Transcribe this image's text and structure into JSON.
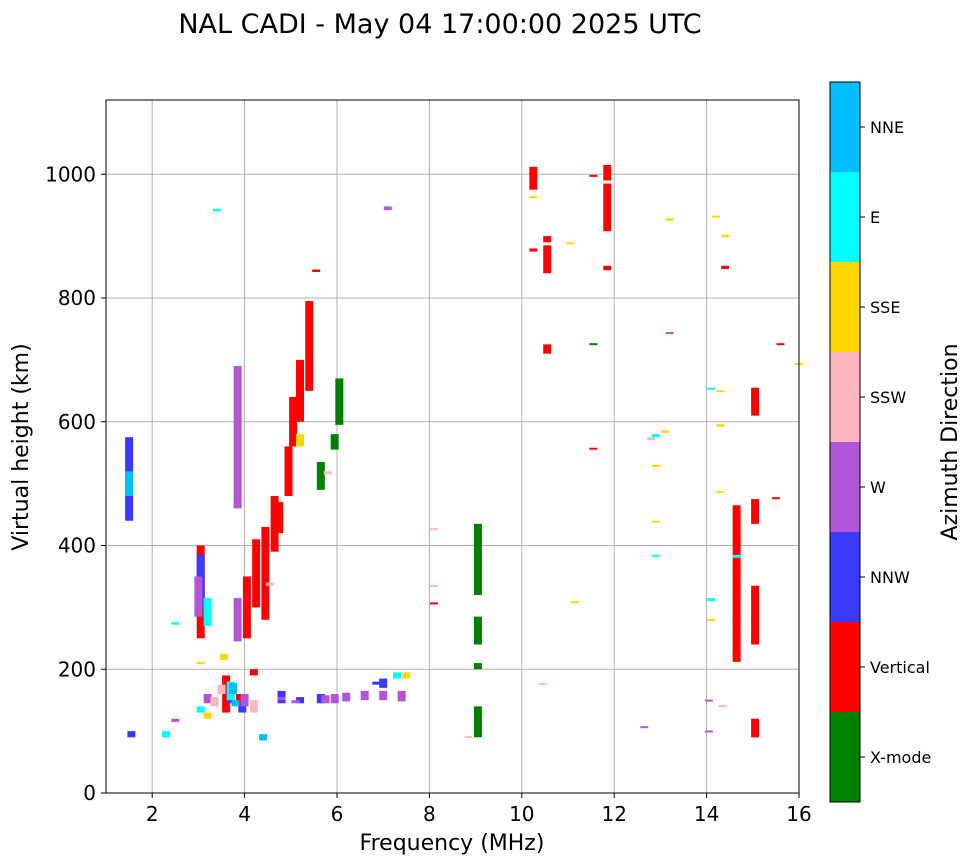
{
  "chart_data": {
    "type": "scatter",
    "title": "NAL CADI - May 04 17:00:00 2025 UTC",
    "xlabel": "Frequency (MHz)",
    "ylabel": "Virtual height (km)",
    "xlim": [
      1,
      16
    ],
    "ylim": [
      0,
      1120
    ],
    "xticks": [
      2,
      4,
      6,
      8,
      10,
      12,
      14,
      16
    ],
    "yticks": [
      0,
      200,
      400,
      600,
      800,
      1000
    ],
    "grid": true,
    "colorbar": {
      "label": "Azimuth Direction",
      "categories": [
        {
          "name": "X-mode",
          "color": "#008000"
        },
        {
          "name": "Vertical",
          "color": "#ff0000"
        },
        {
          "name": "NNW",
          "color": "#3a3aff"
        },
        {
          "name": "W",
          "color": "#b355d8"
        },
        {
          "name": "SSW",
          "color": "#ffb6c1"
        },
        {
          "name": "SSE",
          "color": "#ffd700"
        },
        {
          "name": "E",
          "color": "#00ffff"
        },
        {
          "name": "NNE",
          "color": "#00bfff"
        }
      ]
    },
    "series": [
      {
        "name": "X-mode",
        "points": [
          [
            9.05,
            90,
            140
          ],
          [
            9.05,
            200,
            210
          ],
          [
            9.05,
            240,
            285
          ],
          [
            9.05,
            320,
            435
          ],
          [
            6.05,
            595,
            670
          ],
          [
            5.95,
            555,
            580
          ],
          [
            5.65,
            490,
            535
          ],
          [
            11.55,
            725,
            727
          ],
          [
            14.65,
            220,
            225
          ],
          [
            14.65,
            250,
            252
          ],
          [
            14.65,
            282,
            284
          ],
          [
            14.65,
            322,
            324
          ],
          [
            14.65,
            362,
            364
          ],
          [
            14.65,
            402,
            404
          ],
          [
            14.65,
            445,
            447
          ],
          [
            10.25,
            1000,
            1003
          ]
        ]
      },
      {
        "name": "Vertical",
        "points": [
          [
            15.05,
            90,
            120
          ],
          [
            15.05,
            435,
            475
          ],
          [
            15.05,
            610,
            655
          ],
          [
            14.65,
            212,
            465
          ],
          [
            15.05,
            240,
            335
          ],
          [
            11.85,
            845,
            852
          ],
          [
            11.85,
            908,
            985
          ],
          [
            11.85,
            990,
            1015
          ],
          [
            10.55,
            840,
            885
          ],
          [
            10.55,
            890,
            900
          ],
          [
            10.55,
            710,
            725
          ],
          [
            10.25,
            875,
            880
          ],
          [
            10.25,
            975,
            1012
          ],
          [
            11.55,
            555,
            558
          ],
          [
            11.55,
            997,
            999
          ],
          [
            14.4,
            847,
            852
          ],
          [
            15.5,
            475,
            478
          ],
          [
            15.6,
            725,
            727
          ],
          [
            8.1,
            305,
            308
          ],
          [
            4.45,
            280,
            430
          ],
          [
            4.75,
            420,
            470
          ],
          [
            4.95,
            480,
            560
          ],
          [
            5.05,
            560,
            640
          ],
          [
            5.2,
            600,
            700
          ],
          [
            5.4,
            650,
            795
          ],
          [
            4.65,
            390,
            480
          ],
          [
            4.25,
            300,
            410
          ],
          [
            4.05,
            250,
            350
          ],
          [
            4.2,
            190,
            200
          ],
          [
            3.9,
            140,
            160
          ],
          [
            3.6,
            130,
            190
          ],
          [
            3.05,
            250,
            400
          ],
          [
            5.55,
            842,
            846
          ]
        ]
      },
      {
        "name": "NNW",
        "points": [
          [
            1.5,
            440,
            575
          ],
          [
            1.55,
            90,
            100
          ],
          [
            3.05,
            300,
            385
          ],
          [
            4.8,
            145,
            165
          ],
          [
            5.2,
            145,
            155
          ],
          [
            5.65,
            145,
            160
          ],
          [
            3.95,
            130,
            145
          ],
          [
            6.85,
            175,
            180
          ],
          [
            7.0,
            170,
            185
          ],
          [
            3.7,
            145,
            170
          ]
        ]
      },
      {
        "name": "W",
        "points": [
          [
            5.75,
            145,
            158
          ],
          [
            6.2,
            148,
            162
          ],
          [
            6.6,
            150,
            165
          ],
          [
            7.0,
            150,
            165
          ],
          [
            7.4,
            148,
            165
          ],
          [
            4.8,
            150,
            155
          ],
          [
            5.95,
            145,
            160
          ],
          [
            5.1,
            145,
            150
          ],
          [
            3.85,
            460,
            690
          ],
          [
            3.0,
            285,
            350
          ],
          [
            3.85,
            245,
            315
          ],
          [
            4.0,
            140,
            160
          ],
          [
            7.1,
            942,
            948
          ],
          [
            13.2,
            742,
            745
          ],
          [
            12.65,
            105,
            108
          ],
          [
            14.05,
            148,
            151
          ],
          [
            14.05,
            98,
            101
          ],
          [
            3.2,
            145,
            160
          ],
          [
            2.5,
            115,
            120
          ]
        ]
      },
      {
        "name": "SSW",
        "points": [
          [
            8.1,
            425,
            428
          ],
          [
            8.1,
            333,
            336
          ],
          [
            8.85,
            90,
            92
          ],
          [
            10.45,
            175,
            178
          ],
          [
            4.55,
            335,
            340
          ],
          [
            14.35,
            140,
            142
          ],
          [
            12.8,
            570,
            575
          ],
          [
            5.8,
            515,
            520
          ],
          [
            3.5,
            160,
            175
          ],
          [
            4.2,
            130,
            150
          ],
          [
            3.35,
            140,
            155
          ]
        ]
      },
      {
        "name": "SSE",
        "points": [
          [
            12.9,
            437,
            440
          ],
          [
            12.9,
            527,
            530
          ],
          [
            13.1,
            582,
            586
          ],
          [
            13.2,
            925,
            929
          ],
          [
            14.3,
            485,
            488
          ],
          [
            14.3,
            592,
            596
          ],
          [
            14.3,
            648,
            651
          ],
          [
            14.4,
            898,
            902
          ],
          [
            14.2,
            930,
            933
          ],
          [
            14.1,
            278,
            281
          ],
          [
            11.05,
            888,
            890
          ],
          [
            11.15,
            308,
            310
          ],
          [
            10.25,
            962,
            965
          ],
          [
            16.0,
            692,
            695
          ],
          [
            5.2,
            560,
            580
          ],
          [
            7.5,
            185,
            195
          ],
          [
            3.55,
            215,
            225
          ],
          [
            3.2,
            120,
            130
          ],
          [
            3.05,
            208,
            212
          ]
        ]
      },
      {
        "name": "E",
        "points": [
          [
            12.9,
            575,
            580
          ],
          [
            12.9,
            382,
            385
          ],
          [
            14.1,
            652,
            655
          ],
          [
            14.1,
            310,
            315
          ],
          [
            3.4,
            940,
            944
          ],
          [
            3.05,
            130,
            140
          ],
          [
            3.7,
            150,
            180
          ],
          [
            3.2,
            270,
            315
          ],
          [
            2.5,
            272,
            276
          ],
          [
            2.3,
            90,
            100
          ],
          [
            4.4,
            90,
            95
          ],
          [
            7.3,
            185,
            195
          ],
          [
            14.65,
            380,
            385
          ]
        ]
      },
      {
        "name": "NNE",
        "points": [
          [
            1.5,
            480,
            520
          ],
          [
            3.75,
            160,
            178
          ],
          [
            4.4,
            85,
            95
          ],
          [
            3.8,
            140,
            150
          ]
        ]
      }
    ]
  }
}
